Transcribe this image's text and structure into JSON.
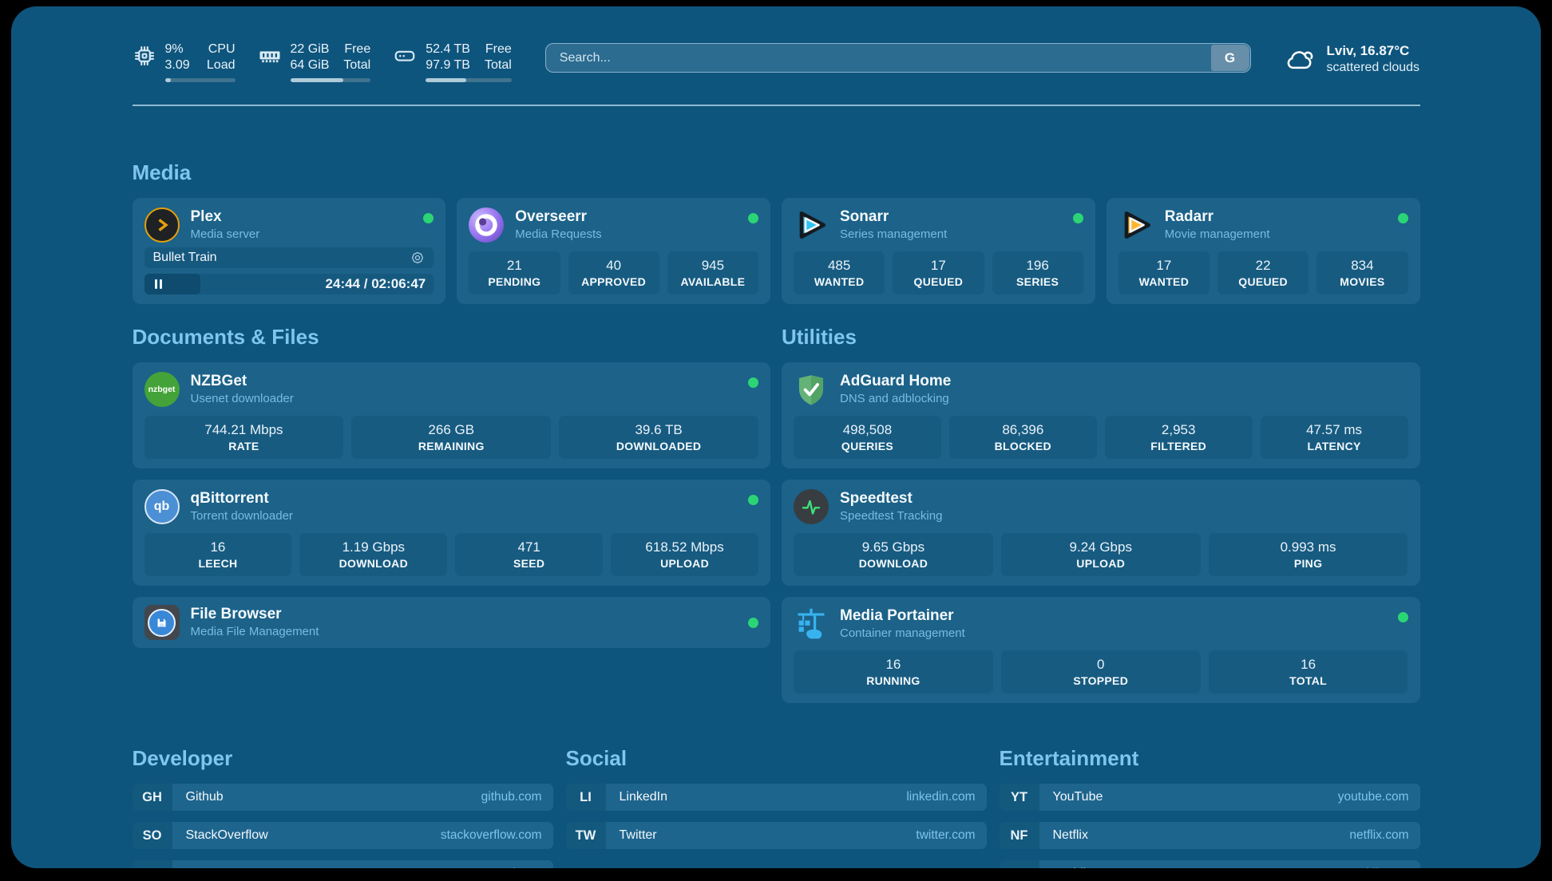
{
  "colors": {
    "page_bg": "#0E557D",
    "card_bg": "#1C6289",
    "stat_box_bg": "#175B81",
    "accent_text": "#7FC6EC",
    "status_online": "#2BD575",
    "url_text": "#7CC4E8"
  },
  "topbar": {
    "stats": [
      {
        "icon": "cpu-icon",
        "col1": [
          "9%",
          "3.09"
        ],
        "col2": [
          "CPU",
          "Load"
        ],
        "progress_pct": 9
      },
      {
        "icon": "memory-icon",
        "col1": [
          "22 GiB",
          "64 GiB"
        ],
        "col2": [
          "Free",
          "Total"
        ],
        "progress_pct": 66
      },
      {
        "icon": "disk-icon",
        "col1": [
          "52.4 TB",
          "97.9 TB"
        ],
        "col2": [
          "Free",
          "Total"
        ],
        "progress_pct": 47
      }
    ],
    "search": {
      "placeholder": "Search...",
      "engine_label": "G",
      "engine_icon": "google-icon"
    },
    "weather": {
      "icon": "cloud-icon",
      "location_temp": "Lviv, 16.87°C",
      "condition": "scattered clouds"
    }
  },
  "sections": {
    "media": {
      "title": "Media",
      "apps": [
        {
          "name": "Plex",
          "subtitle": "Media server",
          "icon": "plex-icon",
          "online": true,
          "now_playing": {
            "title": "Bullet Train",
            "time_display": "24:44 / 02:06:47",
            "progress_pct": 19.5,
            "controls": {
              "pause_icon": "pause-icon",
              "aperture_icon": "aperture-icon"
            }
          }
        },
        {
          "name": "Overseerr",
          "subtitle": "Media Requests",
          "icon": "overseerr-icon",
          "online": true,
          "stats": [
            {
              "value": "21",
              "label": "PENDING"
            },
            {
              "value": "40",
              "label": "APPROVED"
            },
            {
              "value": "945",
              "label": "AVAILABLE"
            }
          ]
        },
        {
          "name": "Sonarr",
          "subtitle": "Series management",
          "icon": "sonarr-icon",
          "online": true,
          "stats": [
            {
              "value": "485",
              "label": "WANTED"
            },
            {
              "value": "17",
              "label": "QUEUED"
            },
            {
              "value": "196",
              "label": "SERIES"
            }
          ]
        },
        {
          "name": "Radarr",
          "subtitle": "Movie management",
          "icon": "radarr-icon",
          "online": true,
          "stats": [
            {
              "value": "17",
              "label": "WANTED"
            },
            {
              "value": "22",
              "label": "QUEUED"
            },
            {
              "value": "834",
              "label": "MOVIES"
            }
          ]
        }
      ]
    },
    "documents": {
      "title": "Documents & Files",
      "apps": [
        {
          "name": "NZBGet",
          "subtitle": "Usenet downloader",
          "icon": "nzbget-icon",
          "online": true,
          "stats": [
            {
              "value": "744.21 Mbps",
              "label": "RATE"
            },
            {
              "value": "266 GB",
              "label": "REMAINING"
            },
            {
              "value": "39.6 TB",
              "label": "DOWNLOADED"
            }
          ]
        },
        {
          "name": "qBittorrent",
          "subtitle": "Torrent downloader",
          "icon": "qbittorrent-icon",
          "online": true,
          "stats": [
            {
              "value": "16",
              "label": "LEECH"
            },
            {
              "value": "1.19 Gbps",
              "label": "DOWNLOAD"
            },
            {
              "value": "471",
              "label": "SEED"
            },
            {
              "value": "618.52 Mbps",
              "label": "UPLOAD"
            }
          ]
        },
        {
          "name": "File Browser",
          "subtitle": "Media File Management",
          "icon": "filebrowser-icon",
          "online": true,
          "stats": []
        }
      ]
    },
    "utilities": {
      "title": "Utilities",
      "apps": [
        {
          "name": "AdGuard Home",
          "subtitle": "DNS and adblocking",
          "icon": "adguard-icon",
          "online": false,
          "stats": [
            {
              "value": "498,508",
              "label": "QUERIES"
            },
            {
              "value": "86,396",
              "label": "BLOCKED"
            },
            {
              "value": "2,953",
              "label": "FILTERED"
            },
            {
              "value": "47.57 ms",
              "label": "LATENCY"
            }
          ]
        },
        {
          "name": "Speedtest",
          "subtitle": "Speedtest Tracking",
          "icon": "speedtest-icon",
          "online": false,
          "stats": [
            {
              "value": "9.65 Gbps",
              "label": "DOWNLOAD"
            },
            {
              "value": "9.24 Gbps",
              "label": "UPLOAD"
            },
            {
              "value": "0.993 ms",
              "label": "PING"
            }
          ]
        },
        {
          "name": "Media Portainer",
          "subtitle": "Container management",
          "icon": "portainer-icon",
          "online": true,
          "stats": [
            {
              "value": "16",
              "label": "RUNNING"
            },
            {
              "value": "0",
              "label": "STOPPED"
            },
            {
              "value": "16",
              "label": "TOTAL"
            }
          ]
        }
      ]
    }
  },
  "bookmarks": {
    "groups": [
      {
        "title": "Developer",
        "items": [
          {
            "abbr": "GH",
            "name": "Github",
            "url": "github.com"
          },
          {
            "abbr": "SO",
            "name": "StackOverflow",
            "url": "stackoverflow.com"
          },
          {
            "abbr": "DT",
            "name": "DEV",
            "url": "dev.to"
          }
        ]
      },
      {
        "title": "Social",
        "items": [
          {
            "abbr": "LI",
            "name": "LinkedIn",
            "url": "linkedin.com"
          },
          {
            "abbr": "TW",
            "name": "Twitter",
            "url": "twitter.com"
          }
        ]
      },
      {
        "title": "Entertainment",
        "items": [
          {
            "abbr": "YT",
            "name": "YouTube",
            "url": "youtube.com"
          },
          {
            "abbr": "NF",
            "name": "Netflix",
            "url": "netflix.com"
          },
          {
            "abbr": "RE",
            "name": "Reddit",
            "url": "reddit.com"
          }
        ]
      }
    ]
  }
}
